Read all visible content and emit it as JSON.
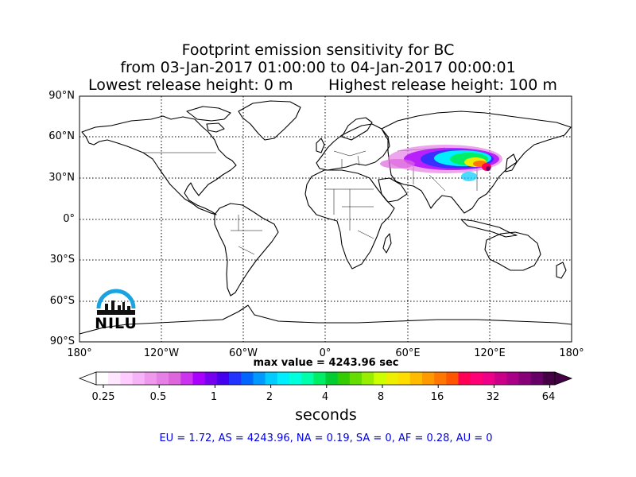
{
  "title": {
    "line1": "Footprint emission sensitivity for BC",
    "line2": "from 03-Jan-2017 01:00:00 to 04-Jan-2017 00:00:01",
    "lowest": "Lowest release height: 0 m",
    "highest": "Highest release height: 100 m"
  },
  "axes": {
    "lat_labels": [
      "90°N",
      "60°N",
      "30°N",
      "0°",
      "30°S",
      "60°S",
      "90°S"
    ],
    "lon_labels": [
      "180°",
      "120°W",
      "60°W",
      "0°",
      "60°E",
      "120°E",
      "180°"
    ],
    "lat_range": [
      -90,
      90
    ],
    "lon_range": [
      -180,
      180
    ],
    "grid": "dotted"
  },
  "max_value": "max value = 4243.96 sec",
  "colorbar": {
    "ticks": [
      "0.25",
      "0.5",
      "1",
      "2",
      "4",
      "8",
      "16",
      "32",
      "64"
    ],
    "label": "seconds",
    "colors": [
      "#ffffff",
      "#ffe6ff",
      "#ffccff",
      "#f7b3f7",
      "#ee99ee",
      "#e680e6",
      "#dd66dd",
      "#cc33ee",
      "#aa00ff",
      "#7700ee",
      "#4400ee",
      "#2233ff",
      "#0066ff",
      "#0099ff",
      "#00ccff",
      "#00eeff",
      "#00ffdd",
      "#00ffaa",
      "#00ee66",
      "#00cc33",
      "#33cc00",
      "#66dd00",
      "#99ee00",
      "#ccff00",
      "#eeee00",
      "#ffdd00",
      "#ffbb00",
      "#ff9900",
      "#ff7700",
      "#ff5500",
      "#ff0055",
      "#ff0077",
      "#ee0088",
      "#cc0088",
      "#aa0088",
      "#880077",
      "#660066",
      "#440044"
    ]
  },
  "logo": {
    "text": "NILU"
  },
  "regions": "EU = 1.72,  AS = 4243.96,  NA = 0.19,  SA = 0,  AF = 0.28,  AU = 0"
}
